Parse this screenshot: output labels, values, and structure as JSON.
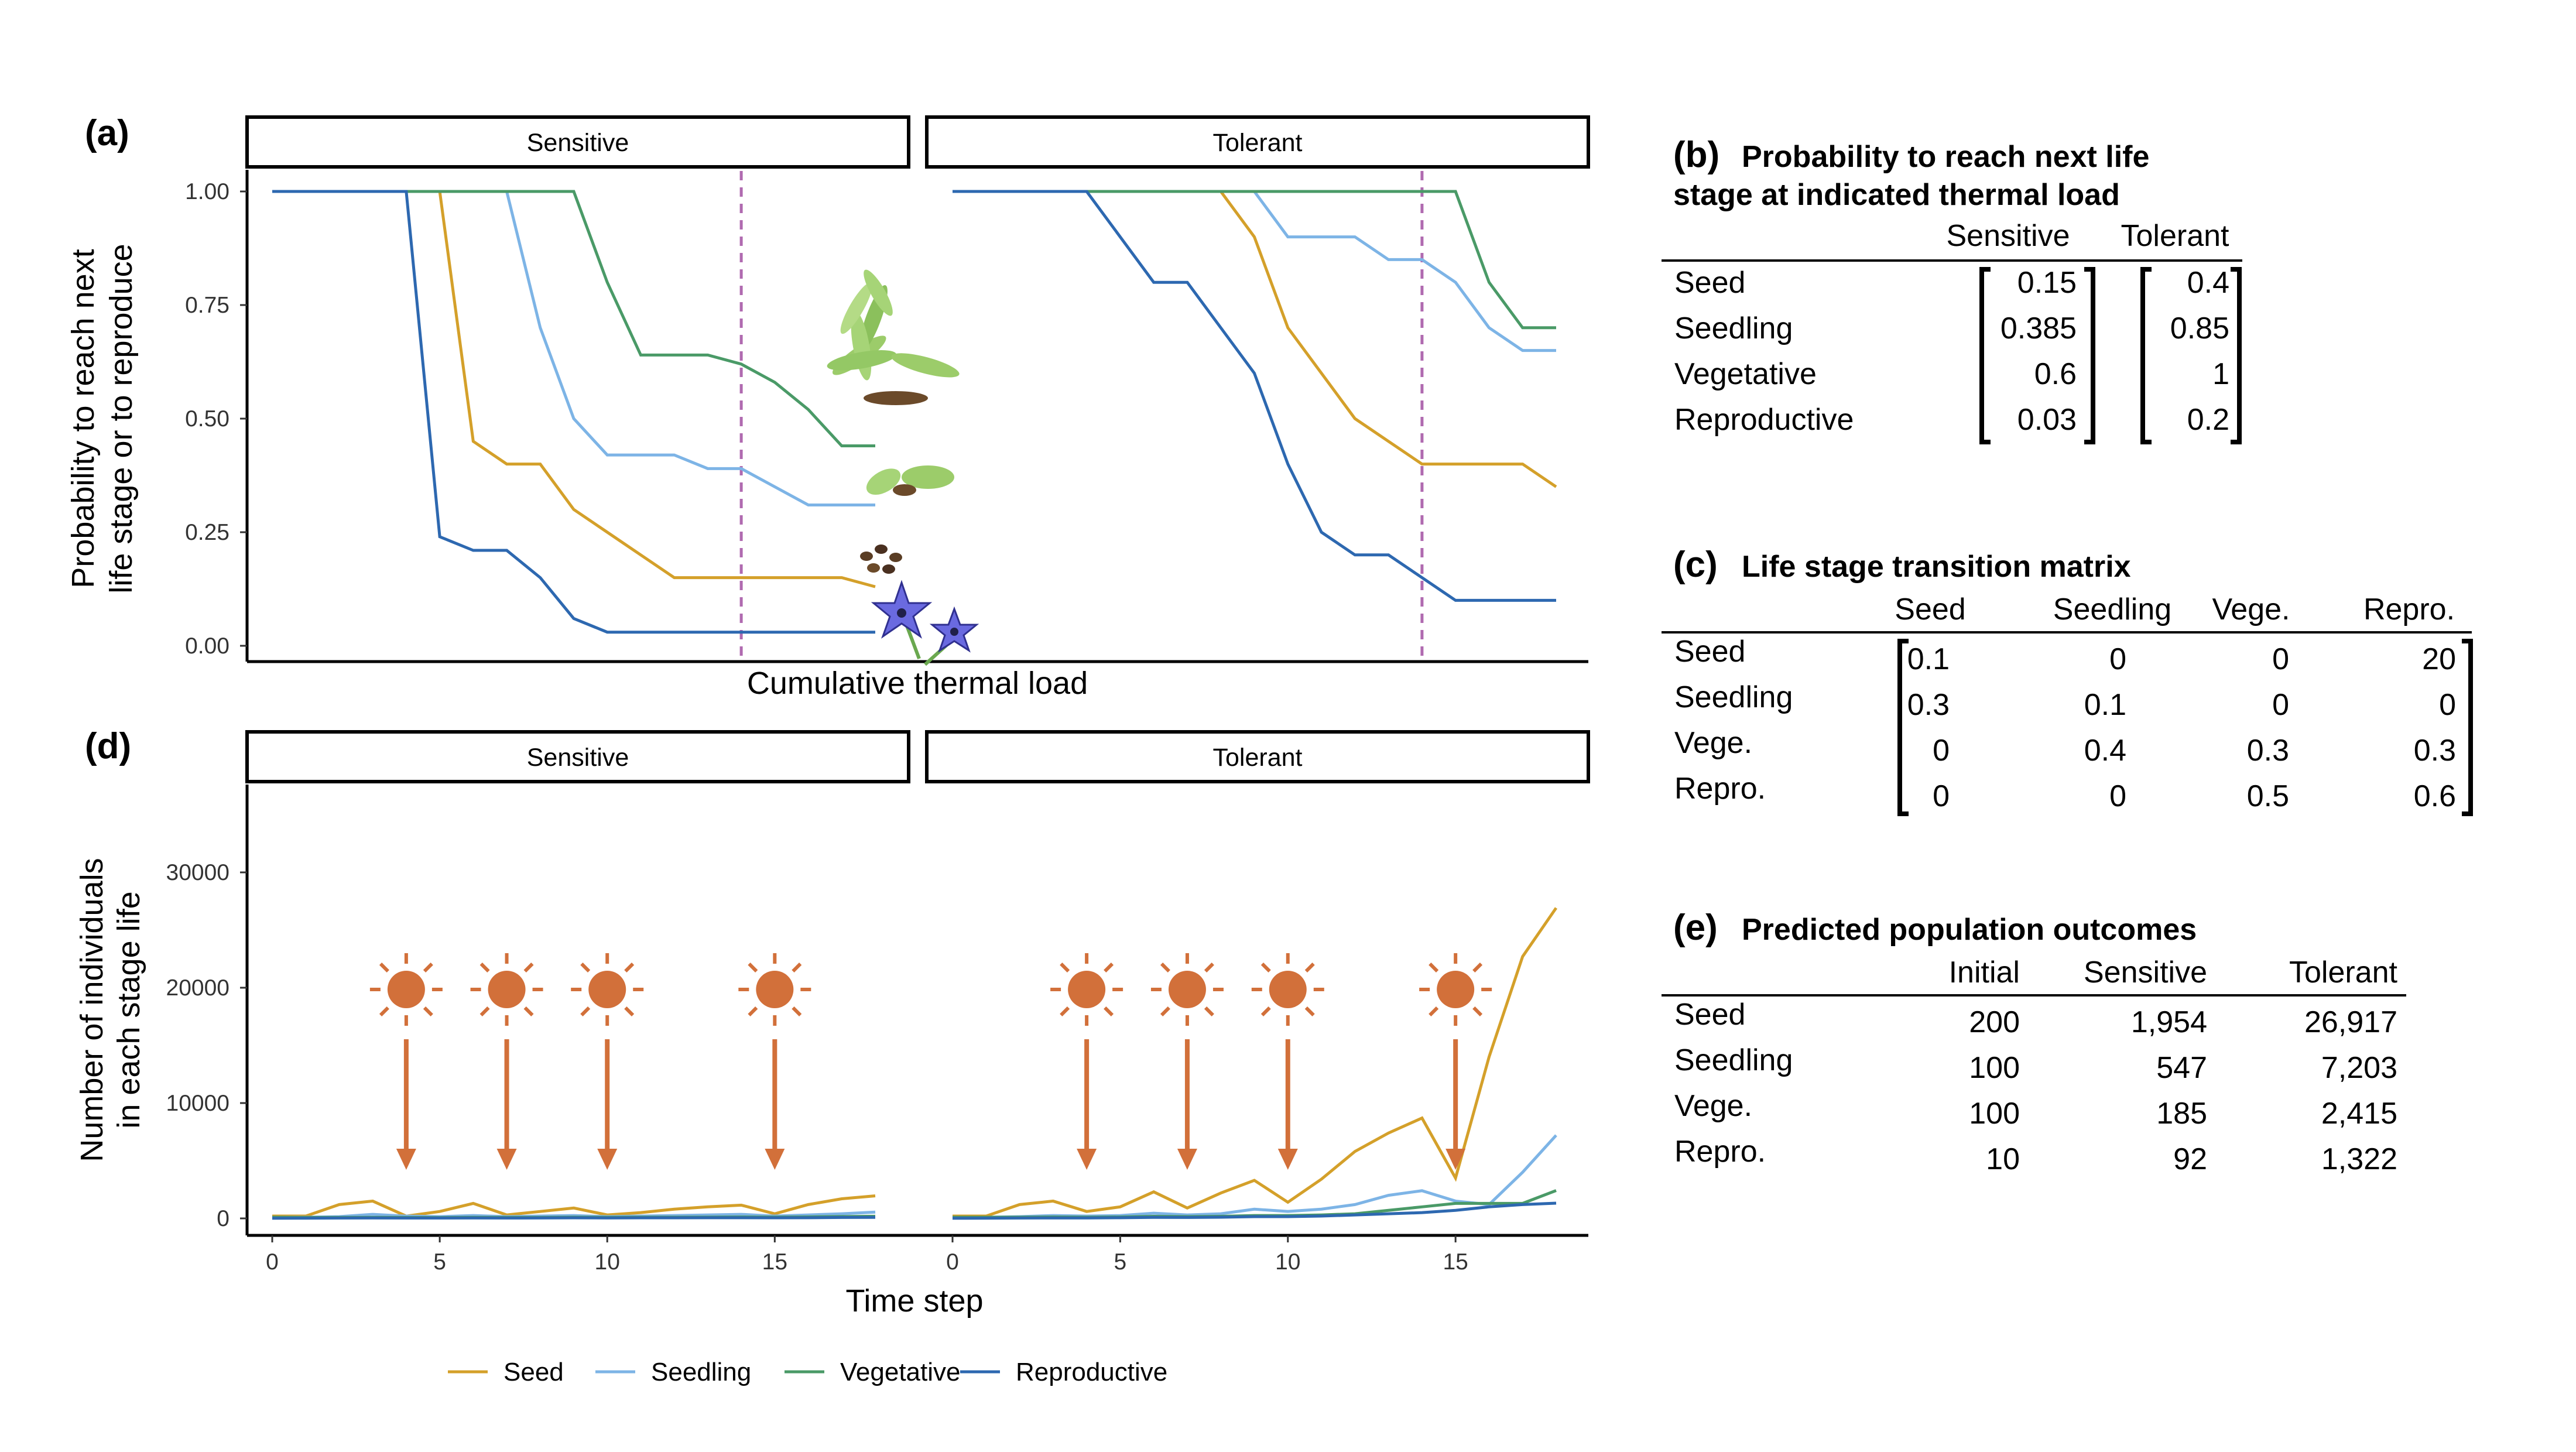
{
  "colors": {
    "Seed": "#d4a02a",
    "Seedling": "#7db4e6",
    "Vegetative": "#4a9a67",
    "Reproductive": "#2d68b0",
    "threshold_line": "#b06ab0",
    "sun": "#d2703a"
  },
  "legend": [
    "Seed",
    "Seedling",
    "Vegetative",
    "Reproductive"
  ],
  "panel_a": {
    "label": "(a)",
    "ylabel_line1": "Probability to reach next",
    "ylabel_line2": "life stage or to reproduce",
    "xlabel": "Cumulative thermal load",
    "facets": [
      "Sensitive",
      "Tolerant"
    ],
    "yticks": [
      "1.00",
      "0.75",
      "0.50",
      "0.25",
      "0.00"
    ]
  },
  "panel_d": {
    "label": "(d)",
    "ylabel_line1": "Number of individuals",
    "ylabel_line2": "in each stage life",
    "xlabel": "Time step",
    "facets": [
      "Sensitive",
      "Tolerant"
    ],
    "yticks": [
      "30000",
      "20000",
      "10000",
      "0"
    ],
    "xticks": [
      "0",
      "5",
      "10",
      "15"
    ],
    "heat_events": [
      4,
      7,
      10,
      15
    ]
  },
  "chart_data": [
    {
      "panel": "a",
      "type": "line",
      "facet": "Sensitive",
      "x": [
        0,
        1,
        2,
        3,
        4,
        5,
        6,
        7,
        8,
        9,
        10,
        11,
        12,
        13,
        14,
        15,
        16,
        17,
        18
      ],
      "ylim": [
        0,
        1
      ],
      "threshold_x": 14,
      "series": [
        {
          "name": "Seed",
          "values": [
            1,
            1,
            1,
            1,
            1,
            1,
            0.45,
            0.4,
            0.4,
            0.3,
            0.25,
            0.2,
            0.15,
            0.15,
            0.15,
            0.15,
            0.15,
            0.15,
            0.13
          ]
        },
        {
          "name": "Seedling",
          "values": [
            1,
            1,
            1,
            1,
            1,
            1,
            1,
            1,
            0.7,
            0.5,
            0.42,
            0.42,
            0.42,
            0.39,
            0.39,
            0.35,
            0.31,
            0.31,
            0.31
          ]
        },
        {
          "name": "Vegetative",
          "values": [
            1,
            1,
            1,
            1,
            1,
            1,
            1,
            1,
            1,
            1,
            0.8,
            0.64,
            0.64,
            0.64,
            0.62,
            0.58,
            0.52,
            0.44,
            0.44
          ]
        },
        {
          "name": "Reproductive",
          "values": [
            1,
            1,
            1,
            1,
            1,
            0.24,
            0.21,
            0.21,
            0.15,
            0.06,
            0.03,
            0.03,
            0.03,
            0.03,
            0.03,
            0.03,
            0.03,
            0.03,
            0.03
          ]
        }
      ]
    },
    {
      "panel": "a",
      "type": "line",
      "facet": "Tolerant",
      "x": [
        0,
        1,
        2,
        3,
        4,
        5,
        6,
        7,
        8,
        9,
        10,
        11,
        12,
        13,
        14,
        15,
        16,
        17,
        18
      ],
      "ylim": [
        0,
        1
      ],
      "threshold_x": 14,
      "series": [
        {
          "name": "Seed",
          "values": [
            1,
            1,
            1,
            1,
            1,
            1,
            1,
            1,
            1,
            0.9,
            0.7,
            0.6,
            0.5,
            0.45,
            0.4,
            0.4,
            0.4,
            0.4,
            0.35
          ]
        },
        {
          "name": "Seedling",
          "values": [
            1,
            1,
            1,
            1,
            1,
            1,
            1,
            1,
            1,
            1,
            0.9,
            0.9,
            0.9,
            0.85,
            0.85,
            0.8,
            0.7,
            0.65,
            0.65
          ]
        },
        {
          "name": "Vegetative",
          "values": [
            1,
            1,
            1,
            1,
            1,
            1,
            1,
            1,
            1,
            1,
            1,
            1,
            1,
            1,
            1,
            1,
            0.8,
            0.7,
            0.7
          ]
        },
        {
          "name": "Reproductive",
          "values": [
            1,
            1,
            1,
            1,
            1,
            0.9,
            0.8,
            0.8,
            0.7,
            0.6,
            0.4,
            0.25,
            0.2,
            0.2,
            0.15,
            0.1,
            0.1,
            0.1,
            0.1
          ]
        }
      ]
    },
    {
      "panel": "d",
      "type": "line",
      "facet": "Sensitive",
      "x": [
        0,
        1,
        2,
        3,
        4,
        5,
        6,
        7,
        8,
        9,
        10,
        11,
        12,
        13,
        14,
        15,
        16,
        17,
        18
      ],
      "ylim": [
        0,
        37000
      ],
      "series": [
        {
          "name": "Seed",
          "values": [
            200,
            200,
            1200,
            1500,
            200,
            600,
            1300,
            300,
            600,
            900,
            300,
            500,
            800,
            1000,
            1150,
            400,
            1200,
            1700,
            1954
          ]
        },
        {
          "name": "Seedling",
          "values": [
            100,
            100,
            150,
            350,
            200,
            150,
            250,
            150,
            200,
            250,
            150,
            200,
            250,
            300,
            350,
            200,
            300,
            400,
            547
          ]
        },
        {
          "name": "Vegetative",
          "values": [
            100,
            80,
            80,
            90,
            80,
            70,
            90,
            80,
            80,
            100,
            90,
            100,
            100,
            110,
            120,
            110,
            130,
            160,
            185
          ]
        },
        {
          "name": "Reproductive",
          "values": [
            10,
            20,
            30,
            40,
            30,
            30,
            40,
            30,
            40,
            50,
            40,
            50,
            50,
            60,
            60,
            50,
            60,
            80,
            92
          ]
        }
      ]
    },
    {
      "panel": "d",
      "type": "line",
      "facet": "Tolerant",
      "x": [
        0,
        1,
        2,
        3,
        4,
        5,
        6,
        7,
        8,
        9,
        10,
        11,
        12,
        13,
        14,
        15,
        16,
        17,
        18
      ],
      "ylim": [
        0,
        37000
      ],
      "series": [
        {
          "name": "Seed",
          "values": [
            200,
            200,
            1200,
            1500,
            600,
            1000,
            2300,
            900,
            2200,
            3300,
            1400,
            3400,
            5800,
            7400,
            8700,
            3500,
            14000,
            22700,
            26917
          ]
        },
        {
          "name": "Seedling",
          "values": [
            100,
            100,
            150,
            250,
            200,
            250,
            450,
            300,
            400,
            800,
            600,
            800,
            1200,
            2000,
            2400,
            1500,
            1200,
            4000,
            7203
          ]
        },
        {
          "name": "Vegetative",
          "values": [
            100,
            100,
            100,
            120,
            100,
            120,
            180,
            150,
            180,
            250,
            250,
            300,
            400,
            700,
            1000,
            1300,
            1300,
            1300,
            2415
          ]
        },
        {
          "name": "Reproductive",
          "values": [
            10,
            20,
            30,
            40,
            40,
            60,
            90,
            80,
            100,
            150,
            150,
            200,
            300,
            400,
            500,
            700,
            1000,
            1200,
            1322
          ]
        }
      ]
    }
  ],
  "panel_b": {
    "label": "(b)",
    "title_line1": "Probability to reach next life",
    "title_line2": "stage at indicated thermal load",
    "columns": [
      "Sensitive",
      "Tolerant"
    ],
    "rows": [
      {
        "name": "Seed",
        "values": [
          "0.15",
          "0.4"
        ]
      },
      {
        "name": "Seedling",
        "values": [
          "0.385",
          "0.85"
        ]
      },
      {
        "name": "Vegetative",
        "values": [
          "0.6",
          "1"
        ]
      },
      {
        "name": "Reproductive",
        "values": [
          "0.03",
          "0.2"
        ]
      }
    ]
  },
  "panel_c": {
    "label": "(c)",
    "title": "Life stage transition matrix",
    "columns": [
      "Seed",
      "Seedling",
      "Vege.",
      "Repro."
    ],
    "rows": [
      {
        "name": "Seed",
        "values": [
          "0.1",
          "0",
          "0",
          "20"
        ]
      },
      {
        "name": "Seedling",
        "values": [
          "0.3",
          "0.1",
          "0",
          "0"
        ]
      },
      {
        "name": "Vege.",
        "values": [
          "0",
          "0.4",
          "0.3",
          "0.3"
        ]
      },
      {
        "name": "Repro.",
        "values": [
          "0",
          "0",
          "0.5",
          "0.6"
        ]
      }
    ]
  },
  "panel_e": {
    "label": "(e)",
    "title": "Predicted population outcomes",
    "columns": [
      "Initial",
      "Sensitive",
      "Tolerant"
    ],
    "rows": [
      {
        "name": "Seed",
        "values": [
          "200",
          "1,954",
          "26,917"
        ]
      },
      {
        "name": "Seedling",
        "values": [
          "100",
          "547",
          "7,203"
        ]
      },
      {
        "name": "Vege.",
        "values": [
          "100",
          "185",
          "2,415"
        ]
      },
      {
        "name": "Repro.",
        "values": [
          "10",
          "92",
          "1,322"
        ]
      }
    ]
  }
}
